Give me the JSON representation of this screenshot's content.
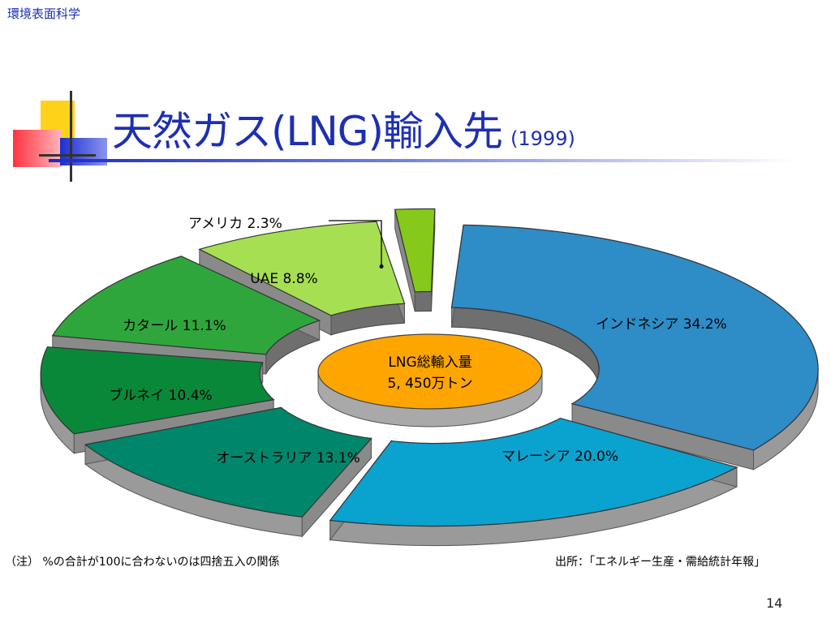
{
  "header": {
    "course": "環境表面科学"
  },
  "slide": {
    "title": "天然ガス(LNG)輸入先",
    "year": "(1999)",
    "page": "14"
  },
  "chart_data": {
    "type": "pie",
    "categories": [
      "インドネシア",
      "マレーシア",
      "オーストラリア",
      "ブルネイ",
      "カタール",
      "UAE",
      "アメリカ"
    ],
    "values": [
      34.2,
      20.0,
      13.1,
      10.4,
      11.1,
      8.8,
      2.3
    ],
    "slice_labels": [
      "インドネシア 34.2%",
      "マレーシア 20.0%",
      "オーストラリア 13.1%",
      "ブルネイ 10.4%",
      "カタール 11.1%",
      "UAE 8.8%",
      "アメリカ 2.3%"
    ],
    "colors": [
      "#2e8cc6",
      "#0aa2cf",
      "#00876b",
      "#0a883a",
      "#2fa63c",
      "#a6e052",
      "#86c91a"
    ],
    "center_label": [
      "LNG総輸入量",
      "5, 450万トン"
    ]
  },
  "notes": {
    "footnote": "（注） %の合計が100に合わないのは四捨五入の関係",
    "source": "出所：「エネルギー生産・需給統計年報」"
  }
}
